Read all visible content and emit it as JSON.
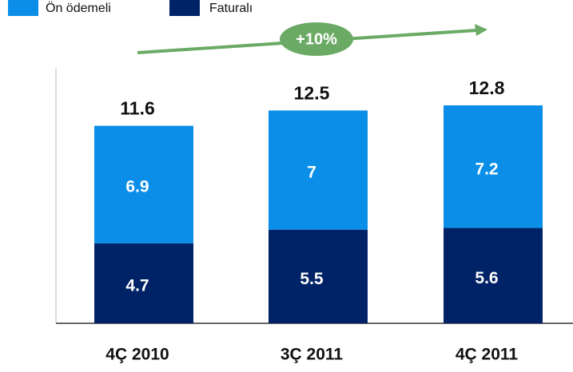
{
  "chart_data": {
    "type": "stacked_bar",
    "categories": [
      "4Ç 2010",
      "3Ç 2011",
      "4Ç 2011"
    ],
    "series": [
      {
        "name": "Faturalı",
        "color": "#002266",
        "values": [
          4.7,
          5.5,
          5.6
        ]
      },
      {
        "name": "Ön ödemeli",
        "color": "#0a8ee8",
        "values": [
          6.9,
          7.0,
          7.2
        ]
      }
    ],
    "totals": [
      11.6,
      12.5,
      12.8
    ],
    "annotation": "+10%",
    "annotation_color": "#6aaa64"
  }
}
